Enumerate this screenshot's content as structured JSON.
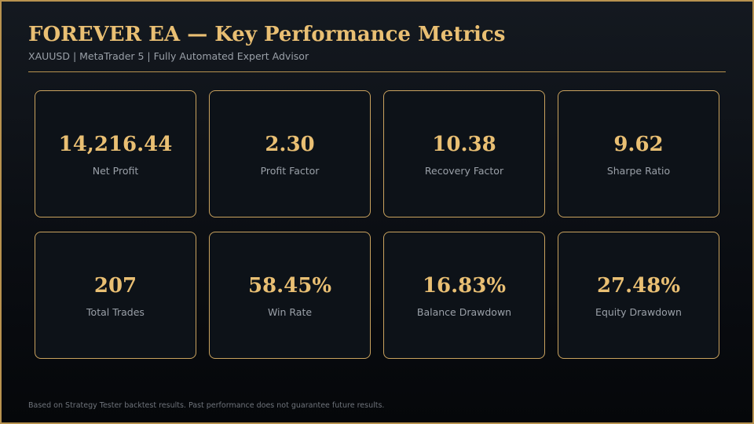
{
  "header": {
    "title": "FOREVER EA — Key Performance Metrics",
    "subtitle": "XAUUSD | MetaTrader 5 | Fully Automated Expert Advisor"
  },
  "metrics": [
    {
      "value": "14,216.44",
      "label": "Net Profit"
    },
    {
      "value": "2.30",
      "label": "Profit Factor"
    },
    {
      "value": "10.38",
      "label": "Recovery Factor"
    },
    {
      "value": "9.62",
      "label": "Sharpe Ratio"
    },
    {
      "value": "207",
      "label": "Total Trades"
    },
    {
      "value": "58.45%",
      "label": "Win Rate"
    },
    {
      "value": "16.83%",
      "label": "Balance Drawdown"
    },
    {
      "value": "27.48%",
      "label": "Equity Drawdown"
    }
  ],
  "footer": {
    "disclaimer": "Based on Strategy Tester backtest results. Past performance does not guarantee future results."
  },
  "colors": {
    "accent": "#e9bf73",
    "border": "#c9a25e",
    "muted_text": "#9aa0a8",
    "background": "#0b0e13"
  }
}
